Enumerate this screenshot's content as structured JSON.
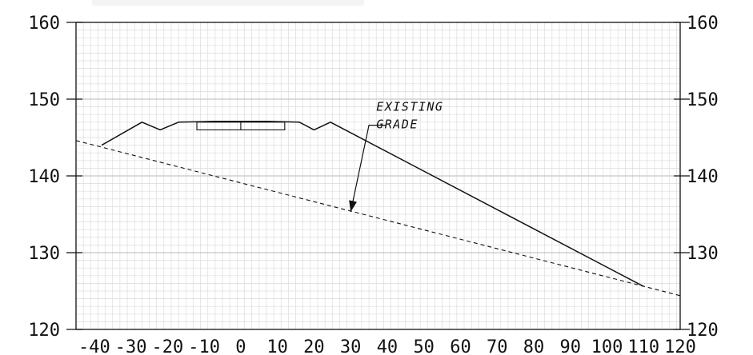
{
  "chart_data": {
    "type": "line",
    "title": "",
    "xlabel": "",
    "ylabel": "",
    "xlim": [
      -45,
      120
    ],
    "ylim": [
      120,
      160
    ],
    "x_ticks": [
      -40,
      -30,
      -20,
      -10,
      0,
      10,
      20,
      30,
      40,
      50,
      60,
      70,
      80,
      90,
      100,
      110,
      120
    ],
    "x_tick_labels": [
      "-40",
      "-30",
      "-20",
      "-10",
      "0",
      "10",
      "20",
      "30",
      "40",
      "50",
      "60",
      "70",
      "80",
      "90",
      "100",
      "110",
      "120"
    ],
    "y_ticks": [
      120,
      130,
      140,
      150,
      160
    ],
    "y_tick_labels": [
      "120",
      "130",
      "140",
      "150",
      "160"
    ],
    "grid": true,
    "minor_grid_step_x": 2,
    "minor_grid_step_y": 1,
    "series": [
      {
        "style": "solid",
        "points": [
          [
            -38,
            144
          ],
          [
            -27,
            147
          ],
          [
            -22,
            146
          ],
          [
            -17,
            147
          ],
          [
            -7,
            147.1
          ],
          [
            7,
            147.1
          ],
          [
            16,
            147
          ],
          [
            20,
            146
          ],
          [
            24.5,
            147
          ],
          [
            110,
            125.6
          ]
        ]
      },
      {
        "style": "dashed",
        "points": [
          [
            -45,
            144.6
          ],
          [
            120,
            124.4
          ]
        ]
      }
    ],
    "pavement_box": {
      "x_from": -12,
      "x_to": 12,
      "y_top": 147,
      "y_bottom": 146,
      "divider_x": 0
    },
    "annotations": [
      {
        "lines": [
          "EXISTING",
          "GRADE"
        ],
        "text_x": 37,
        "text_y": 148.5,
        "arrow_from": [
          35,
          146.6
        ],
        "arrow_to": [
          30,
          135.3
        ]
      }
    ]
  }
}
